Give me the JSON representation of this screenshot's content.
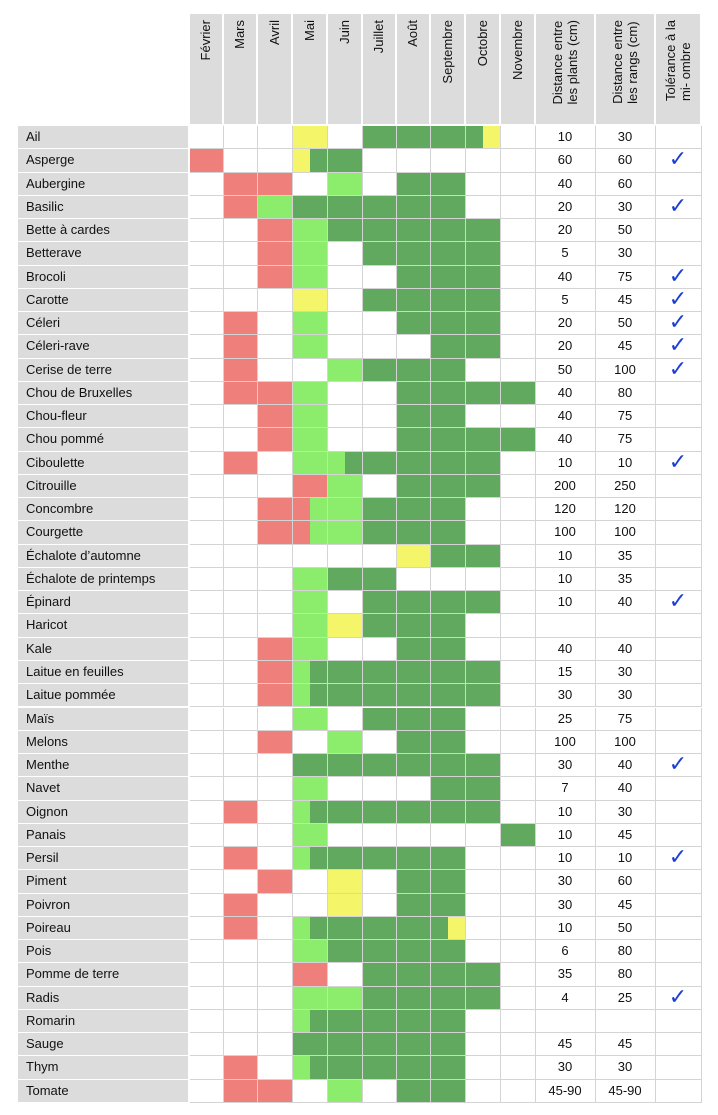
{
  "headers": {
    "months": [
      "Février",
      "Mars",
      "Avril",
      "Mai",
      "Juin",
      "Juillet",
      "Août",
      "Septembre",
      "Octobre",
      "Novembre"
    ],
    "plant_spacing": "Distance entre\nles plants (cm)",
    "row_spacing": "Distance entre\nles rangs (cm)",
    "shade": "Tolérance à la\nmi- ombre"
  },
  "legend_colors": {
    "R": "#ee7f7b",
    "Y": "#f5f56a",
    "L": "#8cec6c",
    "D": "#61a95e"
  },
  "check_symbol": "✓",
  "rows": [
    {
      "name": "Ail",
      "months": [
        "",
        "",
        "",
        "Y",
        "",
        "D",
        "D",
        "D",
        "Dy",
        ""
      ],
      "plant": "10",
      "row": "30",
      "shade": false
    },
    {
      "name": "Asperge",
      "months": [
        "R",
        "",
        "",
        "yD",
        "D",
        "",
        "",
        "",
        "",
        ""
      ],
      "plant": "60",
      "row": "60",
      "shade": true
    },
    {
      "name": "Aubergine",
      "months": [
        "",
        "R",
        "R",
        "",
        "L",
        "",
        "D",
        "D",
        "",
        ""
      ],
      "plant": "40",
      "row": "60",
      "shade": false
    },
    {
      "name": "Basilic",
      "months": [
        "",
        "R",
        "L",
        "D",
        "D",
        "D",
        "D",
        "D",
        "",
        ""
      ],
      "plant": "20",
      "row": "30",
      "shade": true
    },
    {
      "name": "Bette à cardes",
      "months": [
        "",
        "",
        "R",
        "L",
        "D",
        "D",
        "D",
        "D",
        "D",
        ""
      ],
      "plant": "20",
      "row": "50",
      "shade": false
    },
    {
      "name": "Betterave",
      "months": [
        "",
        "",
        "R",
        "L",
        "",
        "D",
        "D",
        "D",
        "D",
        ""
      ],
      "plant": "5",
      "row": "30",
      "shade": false
    },
    {
      "name": "Brocoli",
      "months": [
        "",
        "",
        "R",
        "L",
        "",
        "",
        "D",
        "D",
        "D",
        ""
      ],
      "plant": "40",
      "row": "75",
      "shade": true
    },
    {
      "name": "Carotte",
      "months": [
        "",
        "",
        "",
        "Y",
        "",
        "D",
        "D",
        "D",
        "D",
        ""
      ],
      "plant": "5",
      "row": "45",
      "shade": true
    },
    {
      "name": "Céleri",
      "months": [
        "",
        "R",
        "",
        "L",
        "",
        "",
        "D",
        "D",
        "D",
        ""
      ],
      "plant": "20",
      "row": "50",
      "shade": true
    },
    {
      "name": "Céleri-rave",
      "months": [
        "",
        "R",
        "",
        "L",
        "",
        "",
        "",
        "D",
        "D",
        ""
      ],
      "plant": "20",
      "row": "45",
      "shade": true
    },
    {
      "name": "Cerise de terre",
      "months": [
        "",
        "R",
        "",
        "",
        "L",
        "D",
        "D",
        "D",
        "",
        ""
      ],
      "plant": "50",
      "row": "100",
      "shade": true
    },
    {
      "name": "Chou de Bruxelles",
      "months": [
        "",
        "R",
        "R",
        "L",
        "",
        "",
        "D",
        "D",
        "D",
        "D"
      ],
      "plant": "40",
      "row": "80",
      "shade": false
    },
    {
      "name": "Chou-fleur",
      "months": [
        "",
        "",
        "R",
        "L",
        "",
        "",
        "D",
        "D",
        "",
        ""
      ],
      "plant": "40",
      "row": "75",
      "shade": false
    },
    {
      "name": "Chou pommé",
      "months": [
        "",
        "",
        "R",
        "L",
        "",
        "",
        "D",
        "D",
        "D",
        "D"
      ],
      "plant": "40",
      "row": "75",
      "shade": false
    },
    {
      "name": "Ciboulette",
      "months": [
        "",
        "R",
        "",
        "L",
        "LD",
        "D",
        "D",
        "D",
        "D",
        ""
      ],
      "plant": "10",
      "row": "10",
      "shade": true
    },
    {
      "name": "Citrouille",
      "months": [
        "",
        "",
        "",
        "R",
        "L",
        "",
        "D",
        "D",
        "D",
        ""
      ],
      "plant": "200",
      "row": "250",
      "shade": false
    },
    {
      "name": "Concombre",
      "months": [
        "",
        "",
        "R",
        "rL",
        "L",
        "D",
        "D",
        "D",
        "",
        ""
      ],
      "plant": "120",
      "row": "120",
      "shade": false
    },
    {
      "name": "Courgette",
      "months": [
        "",
        "",
        "R",
        "rL",
        "L",
        "D",
        "D",
        "D",
        "",
        ""
      ],
      "plant": "100",
      "row": "100",
      "shade": false
    },
    {
      "name": "Échalote d’automne",
      "months": [
        "",
        "",
        "",
        "",
        "",
        "",
        "Y",
        "D",
        "D",
        ""
      ],
      "plant": "10",
      "row": "35",
      "shade": false
    },
    {
      "name": "Échalote de printemps",
      "months": [
        "",
        "",
        "",
        "L",
        "D",
        "D",
        "",
        "",
        "",
        ""
      ],
      "plant": "10",
      "row": "35",
      "shade": false
    },
    {
      "name": "Épinard",
      "months": [
        "",
        "",
        "",
        "L",
        "",
        "D",
        "D",
        "D",
        "D",
        ""
      ],
      "plant": "10",
      "row": "40",
      "shade": true
    },
    {
      "name": "Haricot",
      "months": [
        "",
        "",
        "",
        "L",
        "Y",
        "D",
        "D",
        "D",
        "",
        ""
      ],
      "plant": "",
      "row": "",
      "shade": false
    },
    {
      "name": "Kale",
      "months": [
        "",
        "",
        "R",
        "L",
        "",
        "",
        "D",
        "D",
        "",
        ""
      ],
      "plant": "40",
      "row": "40",
      "shade": false
    },
    {
      "name": "Laitue en feuilles",
      "months": [
        "",
        "",
        "R",
        "lD",
        "D",
        "D",
        "D",
        "D",
        "D",
        ""
      ],
      "plant": "15",
      "row": "30",
      "shade": false
    },
    {
      "name": "Laitue pommée",
      "months": [
        "",
        "",
        "R",
        "lD",
        "D",
        "D",
        "D",
        "D",
        "D",
        ""
      ],
      "plant": "30",
      "row": "30",
      "shade": false
    },
    {
      "name": "Maïs",
      "months": [
        "",
        "",
        "",
        "L",
        "",
        "D",
        "D",
        "D",
        "",
        ""
      ],
      "plant": "25",
      "row": "75",
      "shade": false
    },
    {
      "name": "Melons",
      "months": [
        "",
        "",
        "R",
        "",
        "L",
        "",
        "D",
        "D",
        "",
        ""
      ],
      "plant": "100",
      "row": "100",
      "shade": false
    },
    {
      "name": "Menthe",
      "months": [
        "",
        "",
        "",
        "D",
        "D",
        "D",
        "D",
        "D",
        "D",
        ""
      ],
      "plant": "30",
      "row": "40",
      "shade": true
    },
    {
      "name": "Navet",
      "months": [
        "",
        "",
        "",
        "L",
        "",
        "",
        "",
        "D",
        "D",
        ""
      ],
      "plant": "7",
      "row": "40",
      "shade": false
    },
    {
      "name": "Oignon",
      "months": [
        "",
        "R",
        "",
        "lD",
        "D",
        "D",
        "D",
        "D",
        "D",
        ""
      ],
      "plant": "10",
      "row": "30",
      "shade": false
    },
    {
      "name": "Panais",
      "months": [
        "",
        "",
        "",
        "L",
        "",
        "",
        "",
        "",
        "",
        "D"
      ],
      "plant": "10",
      "row": "45",
      "shade": false
    },
    {
      "name": "Persil",
      "months": [
        "",
        "R",
        "",
        "lD",
        "D",
        "D",
        "D",
        "D",
        "",
        ""
      ],
      "plant": "10",
      "row": "10",
      "shade": true
    },
    {
      "name": "Piment",
      "months": [
        "",
        "",
        "R",
        "",
        "Y",
        "",
        "D",
        "D",
        "",
        ""
      ],
      "plant": "30",
      "row": "60",
      "shade": false
    },
    {
      "name": "Poivron",
      "months": [
        "",
        "R",
        "",
        "",
        "Y",
        "",
        "D",
        "D",
        "",
        ""
      ],
      "plant": "30",
      "row": "45",
      "shade": false
    },
    {
      "name": "Poireau",
      "months": [
        "",
        "R",
        "",
        "lD",
        "D",
        "D",
        "D",
        "Dy",
        "",
        ""
      ],
      "plant": "10",
      "row": "50",
      "shade": false
    },
    {
      "name": "Pois",
      "months": [
        "",
        "",
        "",
        "L",
        "D",
        "D",
        "D",
        "D",
        "",
        ""
      ],
      "plant": "6",
      "row": "80",
      "shade": false
    },
    {
      "name": "Pomme de terre",
      "months": [
        "",
        "",
        "",
        "R",
        "",
        "D",
        "D",
        "D",
        "D",
        ""
      ],
      "plant": "35",
      "row": "80",
      "shade": false
    },
    {
      "name": "Radis",
      "months": [
        "",
        "",
        "",
        "L",
        "L",
        "D",
        "D",
        "D",
        "D",
        ""
      ],
      "plant": "4",
      "row": "25",
      "shade": true
    },
    {
      "name": "Romarin",
      "months": [
        "",
        "",
        "",
        "lD",
        "D",
        "D",
        "D",
        "D",
        "",
        ""
      ],
      "plant": "",
      "row": "",
      "shade": false
    },
    {
      "name": "Sauge",
      "months": [
        "",
        "",
        "",
        "D",
        "D",
        "D",
        "D",
        "D",
        "",
        ""
      ],
      "plant": "45",
      "row": "45",
      "shade": false
    },
    {
      "name": "Thym",
      "months": [
        "",
        "R",
        "",
        "lD",
        "D",
        "D",
        "D",
        "D",
        "",
        ""
      ],
      "plant": "30",
      "row": "30",
      "shade": false
    },
    {
      "name": "Tomate",
      "months": [
        "",
        "R",
        "R",
        "",
        "L",
        "",
        "D",
        "D",
        "",
        ""
      ],
      "plant": "45-90",
      "row": "45-90",
      "shade": false
    }
  ]
}
